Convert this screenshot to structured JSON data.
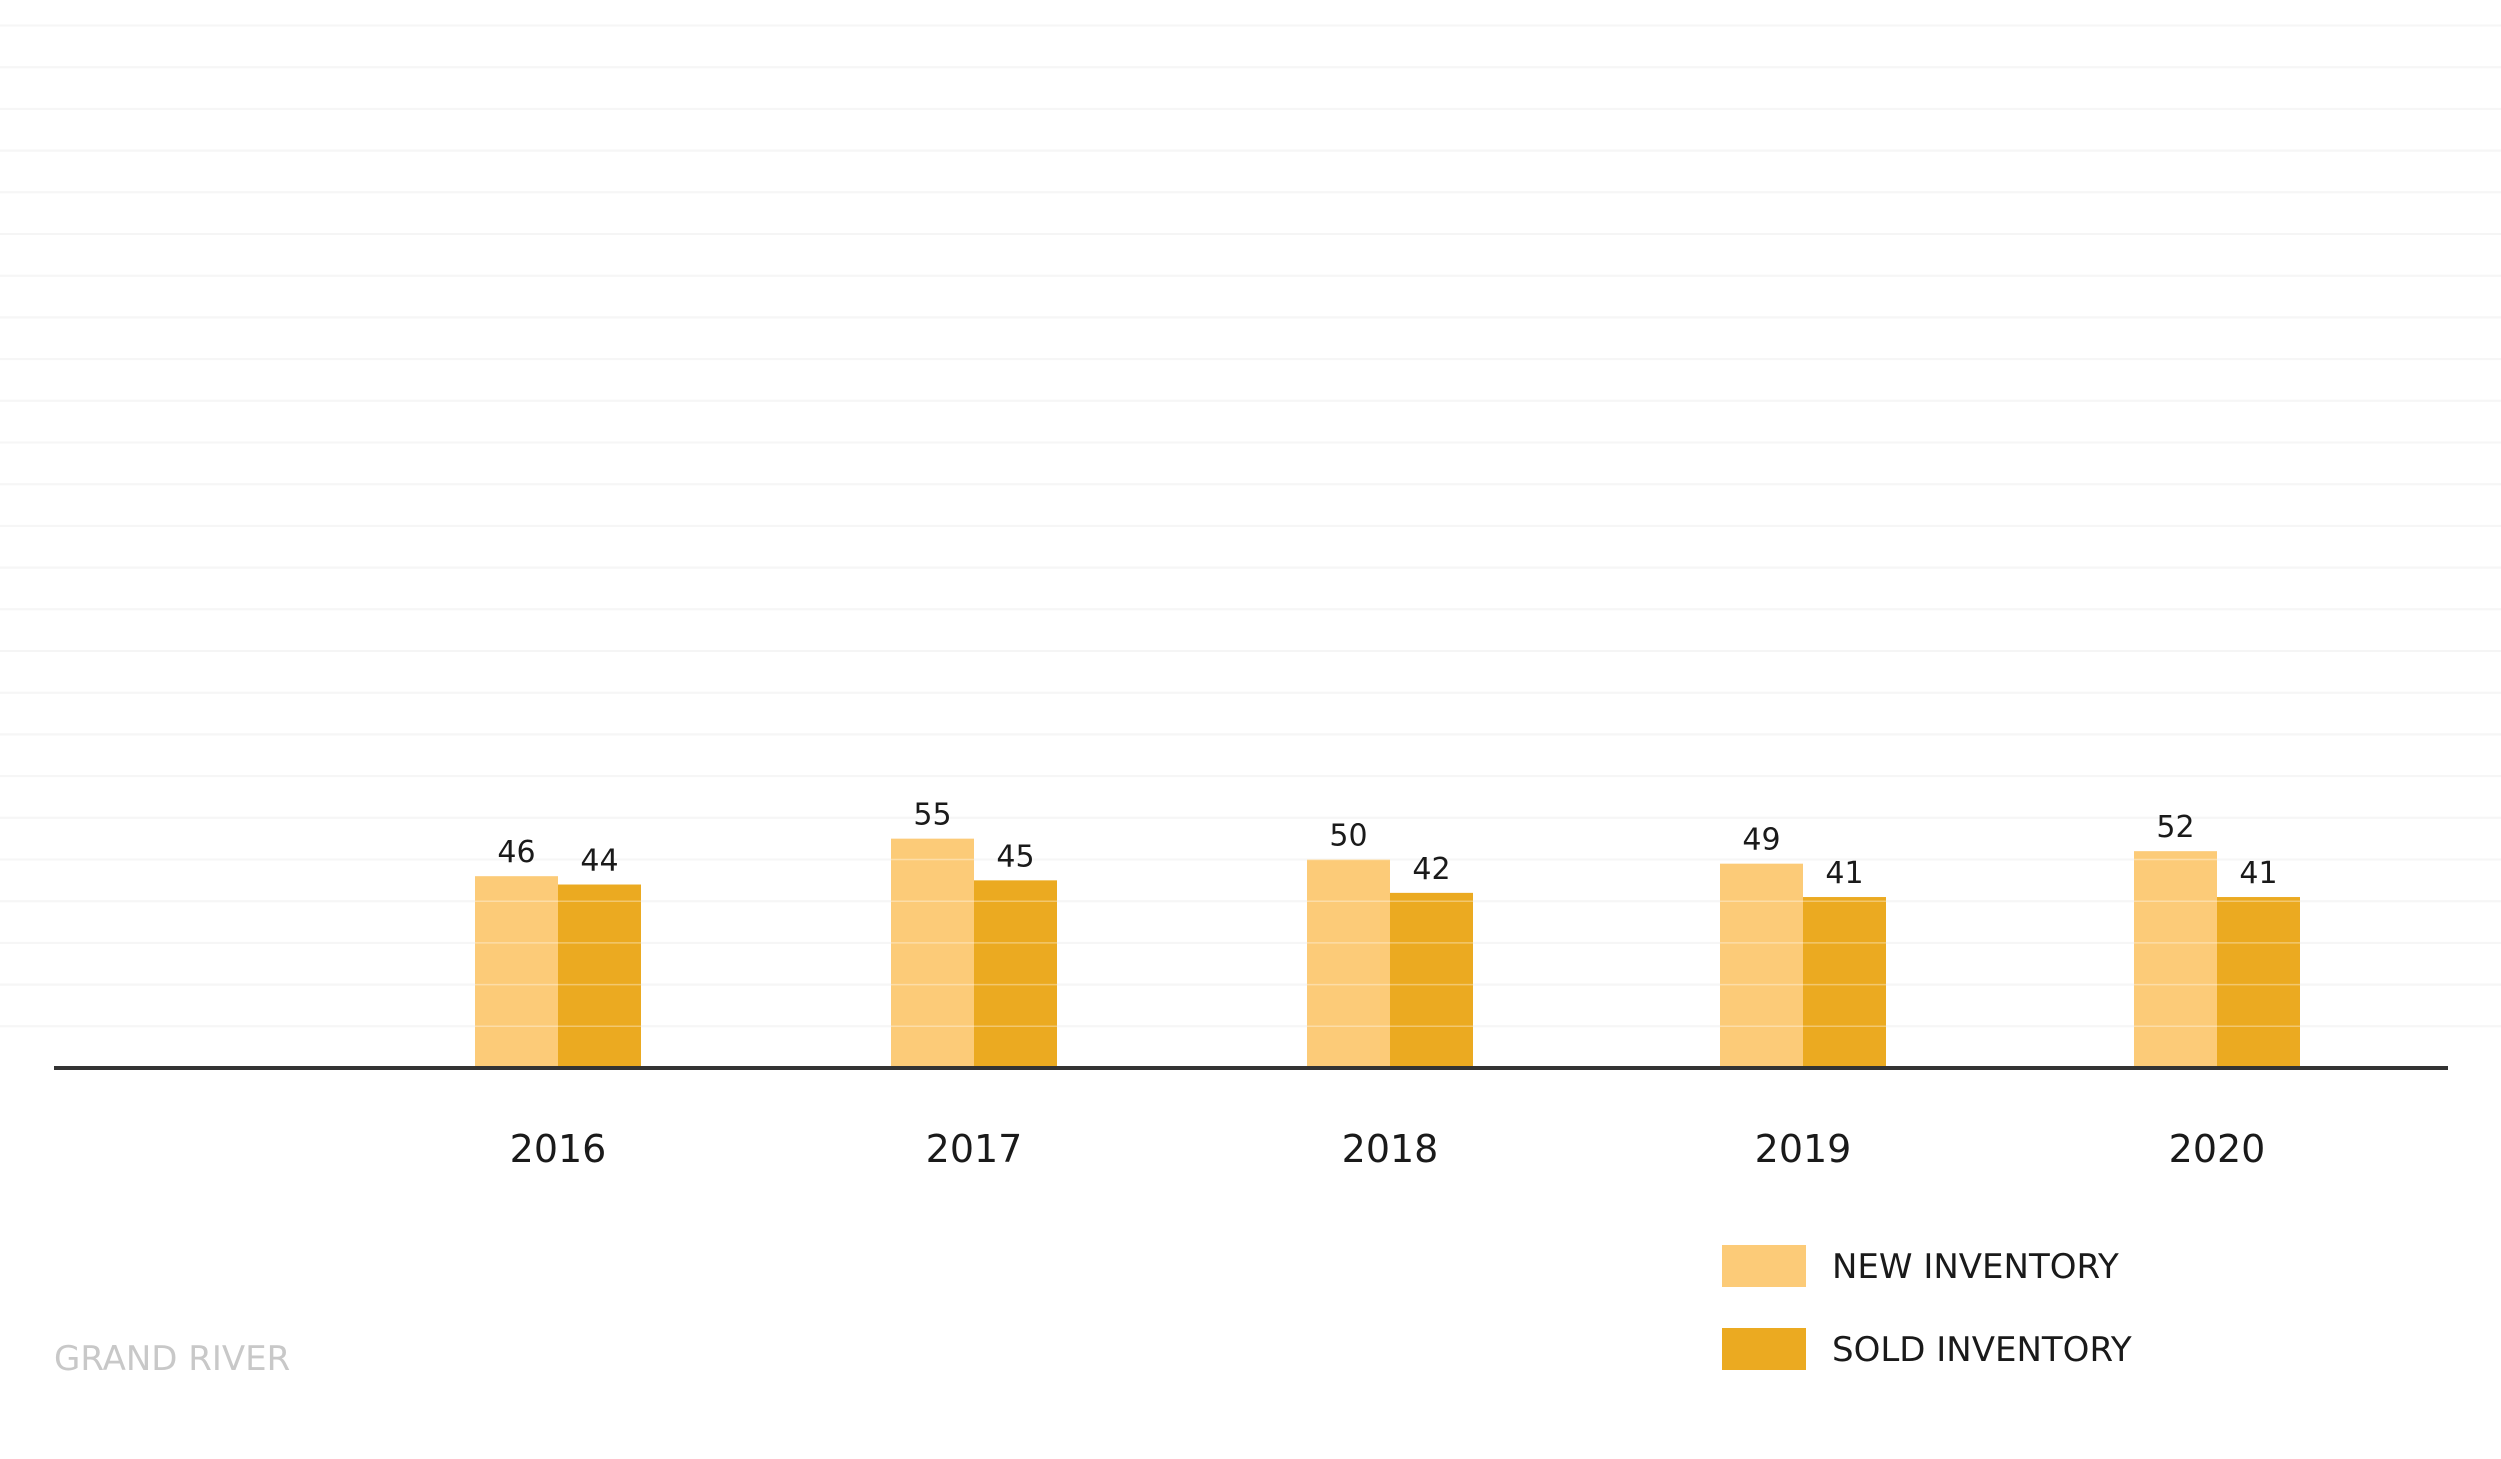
{
  "chart_data": {
    "type": "bar",
    "title": "",
    "xlabel": "",
    "ylabel": "",
    "categories": [
      "2016",
      "2017",
      "2018",
      "2019",
      "2020"
    ],
    "series": [
      {
        "name": "NEW INVENTORY",
        "values": [
          46,
          55,
          50,
          49,
          52
        ],
        "color": "#FCCB78"
      },
      {
        "name": "SOLD INVENTORY",
        "values": [
          44,
          45,
          42,
          41,
          41
        ],
        "color": "#EBAA21"
      }
    ],
    "ylim": [
      0,
      250
    ],
    "grid": true,
    "legend_position": "bottom-right",
    "axis_color": "#333333",
    "grid_color": "#f2f2f2"
  },
  "watermark": "GRAND RIVER"
}
